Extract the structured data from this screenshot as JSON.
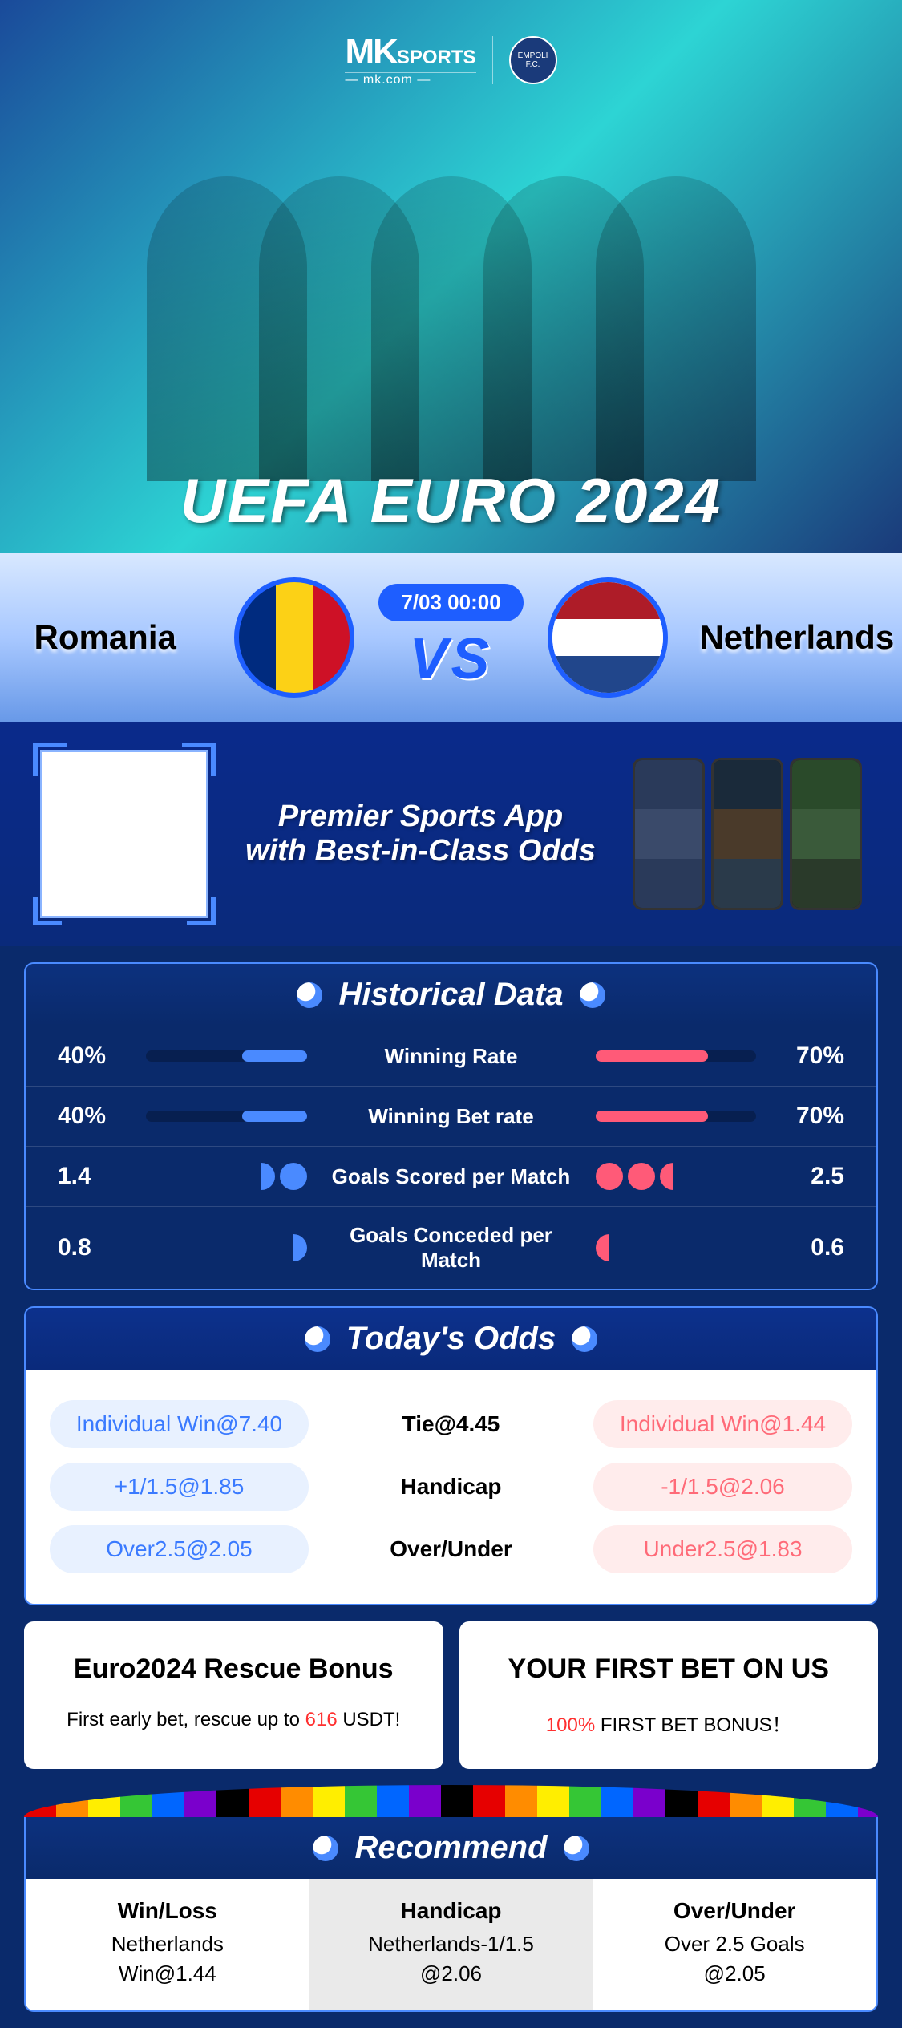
{
  "brand": {
    "mk": "MK",
    "sports": "SPORTS",
    "sub": "— mk.com —",
    "badge": "EMPOLI F.C."
  },
  "hero_title": "UEFA EURO 2024",
  "match": {
    "team_a": "Romania",
    "team_b": "Netherlands",
    "datetime": "7/03 00:00",
    "vs": "VS",
    "flag_nl": {
      "top": "#ae1c28",
      "mid": "#ffffff",
      "bot": "#21468b"
    }
  },
  "promo": {
    "line1": "Premier Sports App",
    "line2": "with Best-in-Class Odds"
  },
  "sections": {
    "historical": "Historical Data",
    "odds": "Today's Odds",
    "recommend": "Recommend"
  },
  "historical": {
    "rows": [
      {
        "label": "Winning Rate",
        "left_val": "40%",
        "right_val": "70%",
        "left_pct": 40,
        "right_pct": 70,
        "type": "bar"
      },
      {
        "label": "Winning Bet rate",
        "left_val": "40%",
        "right_val": "70%",
        "left_pct": 40,
        "right_pct": 70,
        "type": "bar"
      },
      {
        "label": "Goals Scored per Match",
        "left_val": "1.4",
        "right_val": "2.5",
        "left_balls": 1.4,
        "right_balls": 2.5,
        "type": "balls"
      },
      {
        "label": "Goals Conceded per Match",
        "left_val": "0.8",
        "right_val": "0.6",
        "left_balls": 0.8,
        "right_balls": 0.6,
        "type": "balls"
      }
    ],
    "left_color": "#4a8aff",
    "right_color": "#ff5a78"
  },
  "odds": {
    "pill_left_bg": "#e8f1ff",
    "pill_left_fg": "#3a7aff",
    "pill_right_bg": "#ffecec",
    "pill_right_fg": "#ff6a78",
    "rows": [
      {
        "left": "Individual Win@7.40",
        "center": "Tie@4.45",
        "right": "Individual Win@1.44"
      },
      {
        "left": "+1/1.5@1.85",
        "center": "Handicap",
        "right": "-1/1.5@2.06"
      },
      {
        "left": "Over2.5@2.05",
        "center": "Over/Under",
        "right": "Under2.5@1.83"
      }
    ]
  },
  "bonus": {
    "left": {
      "title": "Euro2024 Rescue Bonus",
      "pre": "First early bet, rescue up to ",
      "hl": "616",
      "post": " USDT!"
    },
    "right": {
      "title": "YOUR FIRST BET ON US",
      "hl": "100%",
      "post": " FIRST BET BONUS！"
    }
  },
  "recommend": {
    "cols": [
      {
        "head": "Win/Loss",
        "l1": "Netherlands",
        "l2": "Win@1.44"
      },
      {
        "head": "Handicap",
        "l1": "Netherlands-1/1.5",
        "l2": "@2.06"
      },
      {
        "head": "Over/Under",
        "l1": "Over 2.5 Goals",
        "l2": "@2.05"
      }
    ]
  }
}
